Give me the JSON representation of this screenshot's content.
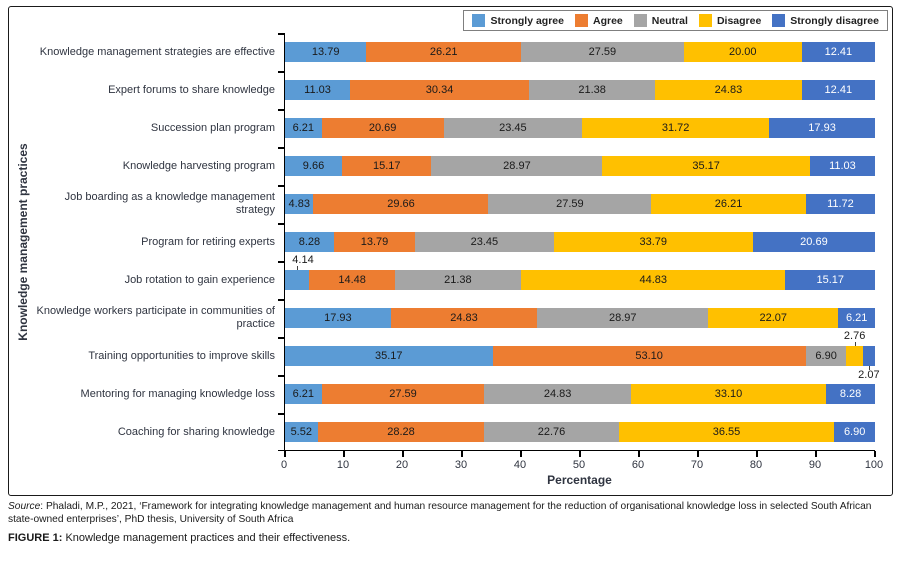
{
  "chart_data": {
    "type": "bar",
    "stacked": true,
    "orientation": "horizontal",
    "x_axis_title": "Percentage",
    "y_axis_title": "Knowledge management practices",
    "xlim": [
      0,
      100
    ],
    "x_ticks": [
      0,
      10,
      20,
      30,
      40,
      50,
      60,
      70,
      80,
      90,
      100
    ],
    "grid": false,
    "legend_position": "top-right",
    "series_names": [
      "Strongly agree",
      "Agree",
      "Neutral",
      "Disagree",
      "Strongly disagree"
    ],
    "series_colors": [
      "#5B9BD5",
      "#ED7D31",
      "#A5A5A5",
      "#FFC000",
      "#4472C4"
    ],
    "value_text_colors": [
      "#1a1a1a",
      "#1a1a1a",
      "#1a1a1a",
      "#1a1a1a",
      "#ffffff"
    ],
    "categories": [
      "Knowledge management strategies are effective",
      "Expert forums to share knowledge",
      "Succession plan program",
      "Knowledge harvesting program",
      "Job boarding as a knowledge management strategy",
      "Program for retiring experts",
      "Job rotation to gain experience",
      "Knowledge workers participate in communities of practice",
      "Training opportunities to improve skills",
      "Mentoring for managing knowledge loss",
      "Coaching for sharing knowledge"
    ],
    "rows": [
      [
        13.79,
        26.21,
        27.59,
        20.0,
        12.41
      ],
      [
        11.03,
        30.34,
        21.38,
        24.83,
        12.41
      ],
      [
        6.21,
        20.69,
        23.45,
        31.72,
        17.93
      ],
      [
        9.66,
        15.17,
        28.97,
        35.17,
        11.03
      ],
      [
        4.83,
        29.66,
        27.59,
        26.21,
        11.72
      ],
      [
        8.28,
        13.79,
        23.45,
        33.79,
        20.69
      ],
      [
        4.14,
        14.48,
        21.38,
        44.83,
        15.17
      ],
      [
        17.93,
        24.83,
        28.97,
        22.07,
        6.21
      ],
      [
        35.17,
        53.1,
        6.9,
        2.76,
        2.07
      ],
      [
        6.21,
        27.59,
        24.83,
        33.1,
        8.28
      ],
      [
        5.52,
        28.28,
        22.76,
        36.55,
        6.9
      ]
    ],
    "outside_labels": [
      {
        "row": 6,
        "seg": 0,
        "pos": "above"
      },
      {
        "row": 8,
        "seg": 3,
        "pos": "above"
      },
      {
        "row": 8,
        "seg": 4,
        "pos": "below"
      }
    ]
  },
  "footer": {
    "source_label": "Source",
    "source_text": ": Phaladi, M.P., 2021, ‘Framework for integrating knowledge management and human resource management for the reduction of organisational knowledge loss in selected South African state-owned enterprises’, PhD thesis, University of South Africa",
    "caption_label": "FIGURE 1:",
    "caption_text": " Knowledge management practices and their effectiveness."
  }
}
